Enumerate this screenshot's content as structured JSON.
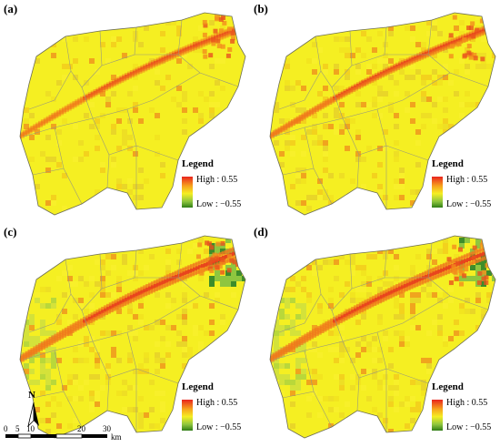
{
  "panels": [
    {
      "label": "(a)",
      "variant": 0
    },
    {
      "label": "(b)",
      "variant": 1
    },
    {
      "label": "(c)",
      "variant": 2
    },
    {
      "label": "(d)",
      "variant": 3
    }
  ],
  "legend": {
    "title": "Legend",
    "high_label": "High : 0.55",
    "low_label": "Low : −0.55",
    "high_color": "#e8241e",
    "low_color": "#2f7d16",
    "mid_color": "#f5ef22"
  },
  "north_arrow": {
    "label": "N"
  },
  "scale_bar": {
    "ticks": [
      "0",
      "5",
      "10",
      "20",
      "30"
    ],
    "unit": "km"
  }
}
